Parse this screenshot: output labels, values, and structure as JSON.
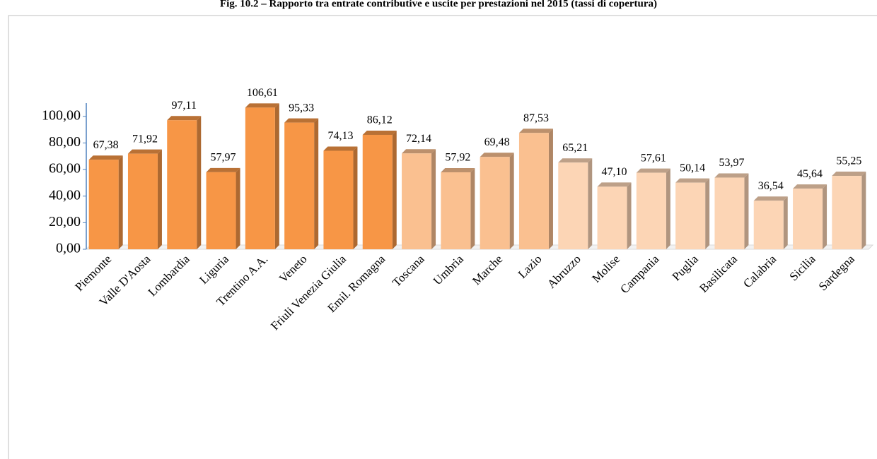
{
  "chart_data": {
    "type": "bar",
    "title": "Fig. 10.2 – Rapporto tra entrate contributive e uscite per prestazioni nel 2015 (tassi di copertura)",
    "categories": [
      "Piemonte",
      "Valle D'Aosta",
      "Lombardia",
      "Liguria",
      "Trentino A.A.",
      "Veneto",
      "Friuli Venezia Giulia",
      "Emil. Romagna",
      "Toscana",
      "Umbria",
      "Marche",
      "Lazio",
      "Abruzzo",
      "Molise",
      "Campania",
      "Puglia",
      "Basilicata",
      "Calabria",
      "Sicilia",
      "Sardegna"
    ],
    "values": [
      67.38,
      71.92,
      97.11,
      57.97,
      106.61,
      95.33,
      74.13,
      86.12,
      72.14,
      57.92,
      69.48,
      87.53,
      65.21,
      47.1,
      57.61,
      50.14,
      53.97,
      36.54,
      45.64,
      55.25
    ],
    "value_labels": [
      "67,38",
      "71,92",
      "97,11",
      "57,97",
      "106,61",
      "95,33",
      "74,13",
      "86,12",
      "72,14",
      "57,92",
      "69,48",
      "87,53",
      "65,21",
      "47,10",
      "57,61",
      "50,14",
      "53,97",
      "36,54",
      "45,64",
      "55,25"
    ],
    "colors": [
      "#f79646",
      "#f79646",
      "#f79646",
      "#f79646",
      "#f79646",
      "#f79646",
      "#f79646",
      "#f79646",
      "#fac090",
      "#fac090",
      "#fac090",
      "#fac090",
      "#fcd5b5",
      "#fcd5b5",
      "#fcd5b5",
      "#fcd5b5",
      "#fcd5b5",
      "#fcd5b5",
      "#fcd5b5",
      "#fcd5b5"
    ],
    "ylim": [
      0,
      110
    ],
    "yticks": [
      {
        "value": 0,
        "label": "0,00"
      },
      {
        "value": 20,
        "label": "20,00"
      },
      {
        "value": 40,
        "label": "40,00"
      },
      {
        "value": 60,
        "label": "60,00"
      },
      {
        "value": 80,
        "label": "80,00"
      },
      {
        "value": 100,
        "label": "100,00"
      }
    ]
  }
}
